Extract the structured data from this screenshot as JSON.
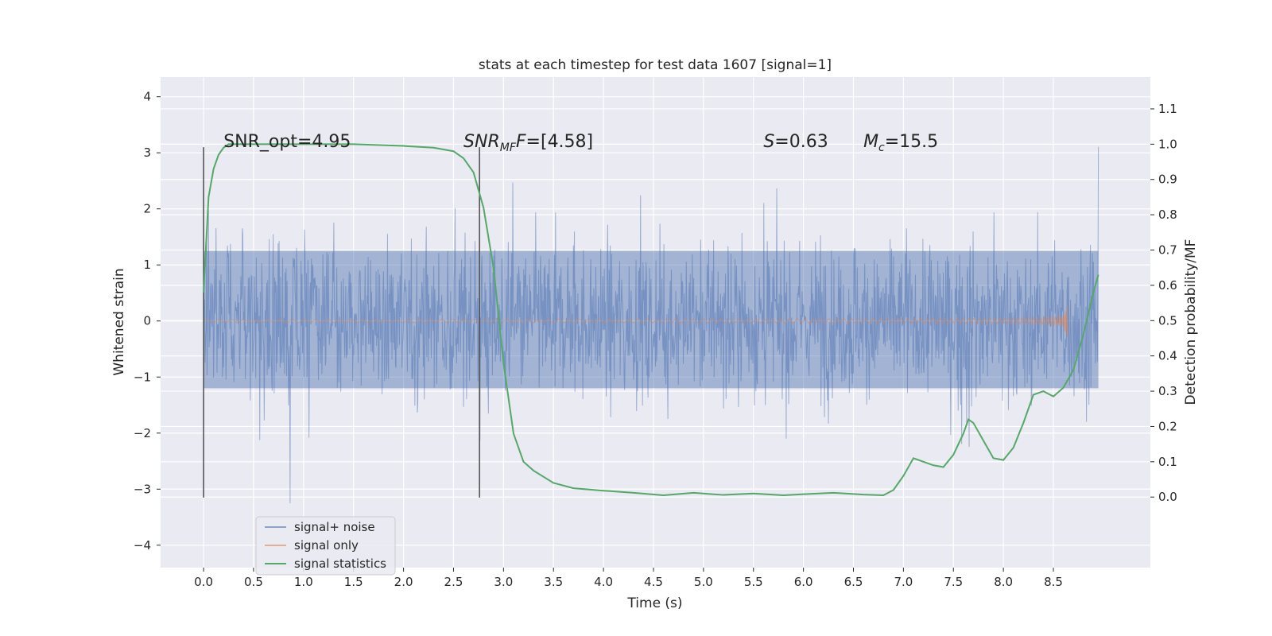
{
  "chart_data": {
    "type": "line",
    "title": "stats at each timestep for test data 1607 [signal=1]",
    "xlabel": "Time (s)",
    "ylabel": "Whitened strain",
    "ylabel_right": "Detection probability/MF",
    "xlim": [
      -0.43,
      9.47
    ],
    "ylim": [
      -4.4,
      4.35
    ],
    "ylim_right": [
      -0.2,
      1.19
    ],
    "xticks": [
      "0.0",
      "0.5",
      "1.0",
      "1.5",
      "2.0",
      "2.5",
      "3.0",
      "3.5",
      "4.0",
      "4.5",
      "5.0",
      "5.5",
      "6.0",
      "6.5",
      "7.0",
      "7.5",
      "8.0",
      "8.5"
    ],
    "yticks": [
      "−4",
      "−3",
      "−2",
      "−1",
      "0",
      "1",
      "2",
      "3",
      "4"
    ],
    "yticks_right": [
      "0.0",
      "0.1",
      "0.2",
      "0.3",
      "0.4",
      "0.5",
      "0.6",
      "0.7",
      "0.8",
      "0.9",
      "1.0",
      "1.1"
    ],
    "grid": true,
    "legend_position": "lower-left",
    "annotations": [
      {
        "parts": [
          {
            "t": "SNR_opt=4.95",
            "i": false
          }
        ]
      },
      {
        "parts": [
          {
            "t": "SNR",
            "i": true
          },
          {
            "t": "MF",
            "i": true,
            "sub": true
          },
          {
            "t": "F",
            "i": true
          },
          {
            "t": "=[4.58]",
            "i": false
          }
        ]
      },
      {
        "parts": [
          {
            "t": "S",
            "i": true
          },
          {
            "t": "=0.63",
            "i": false
          }
        ]
      },
      {
        "parts": [
          {
            "t": "M",
            "i": true
          },
          {
            "t": "c",
            "i": true,
            "sub": true
          },
          {
            "t": "=15.5",
            "i": false
          }
        ]
      }
    ],
    "vertical_markers": [
      0.0,
      2.76
    ],
    "series": [
      {
        "name": "signal+ noise",
        "color": "#4c72b0",
        "t_range": [
          0.0,
          8.95
        ],
        "noise_band": [
          -1.2,
          1.25
        ],
        "peak_max": 3.95,
        "peak_min": -3.95
      },
      {
        "name": "signal only",
        "color": "#dd8452",
        "t_range": [
          0.0,
          8.64
        ],
        "peak_amplitude": 0.8
      },
      {
        "name": "signal statistics",
        "color": "#55a868",
        "axis": "right",
        "x": [
          0.0,
          0.05,
          0.1,
          0.15,
          0.2,
          0.25,
          0.3,
          0.5,
          1.0,
          1.5,
          2.0,
          2.3,
          2.5,
          2.6,
          2.7,
          2.8,
          2.9,
          3.0,
          3.1,
          3.2,
          3.3,
          3.5,
          3.7,
          4.0,
          4.3,
          4.6,
          4.9,
          5.2,
          5.5,
          5.8,
          6.0,
          6.3,
          6.6,
          6.8,
          6.9,
          7.0,
          7.1,
          7.2,
          7.3,
          7.4,
          7.5,
          7.6,
          7.65,
          7.7,
          7.8,
          7.9,
          8.0,
          8.1,
          8.2,
          8.3,
          8.4,
          8.5,
          8.6,
          8.7,
          8.8,
          8.9,
          8.95
        ],
        "values": [
          0.58,
          0.85,
          0.93,
          0.97,
          0.99,
          1.0,
          1.0,
          1.0,
          1.0,
          1.0,
          0.995,
          0.99,
          0.98,
          0.96,
          0.92,
          0.82,
          0.65,
          0.38,
          0.18,
          0.1,
          0.075,
          0.04,
          0.025,
          0.018,
          0.012,
          0.005,
          0.012,
          0.006,
          0.01,
          0.005,
          0.008,
          0.012,
          0.007,
          0.005,
          0.02,
          0.06,
          0.11,
          0.1,
          0.09,
          0.085,
          0.12,
          0.18,
          0.22,
          0.21,
          0.16,
          0.11,
          0.105,
          0.14,
          0.21,
          0.29,
          0.3,
          0.285,
          0.31,
          0.36,
          0.46,
          0.58,
          0.63
        ]
      }
    ]
  }
}
